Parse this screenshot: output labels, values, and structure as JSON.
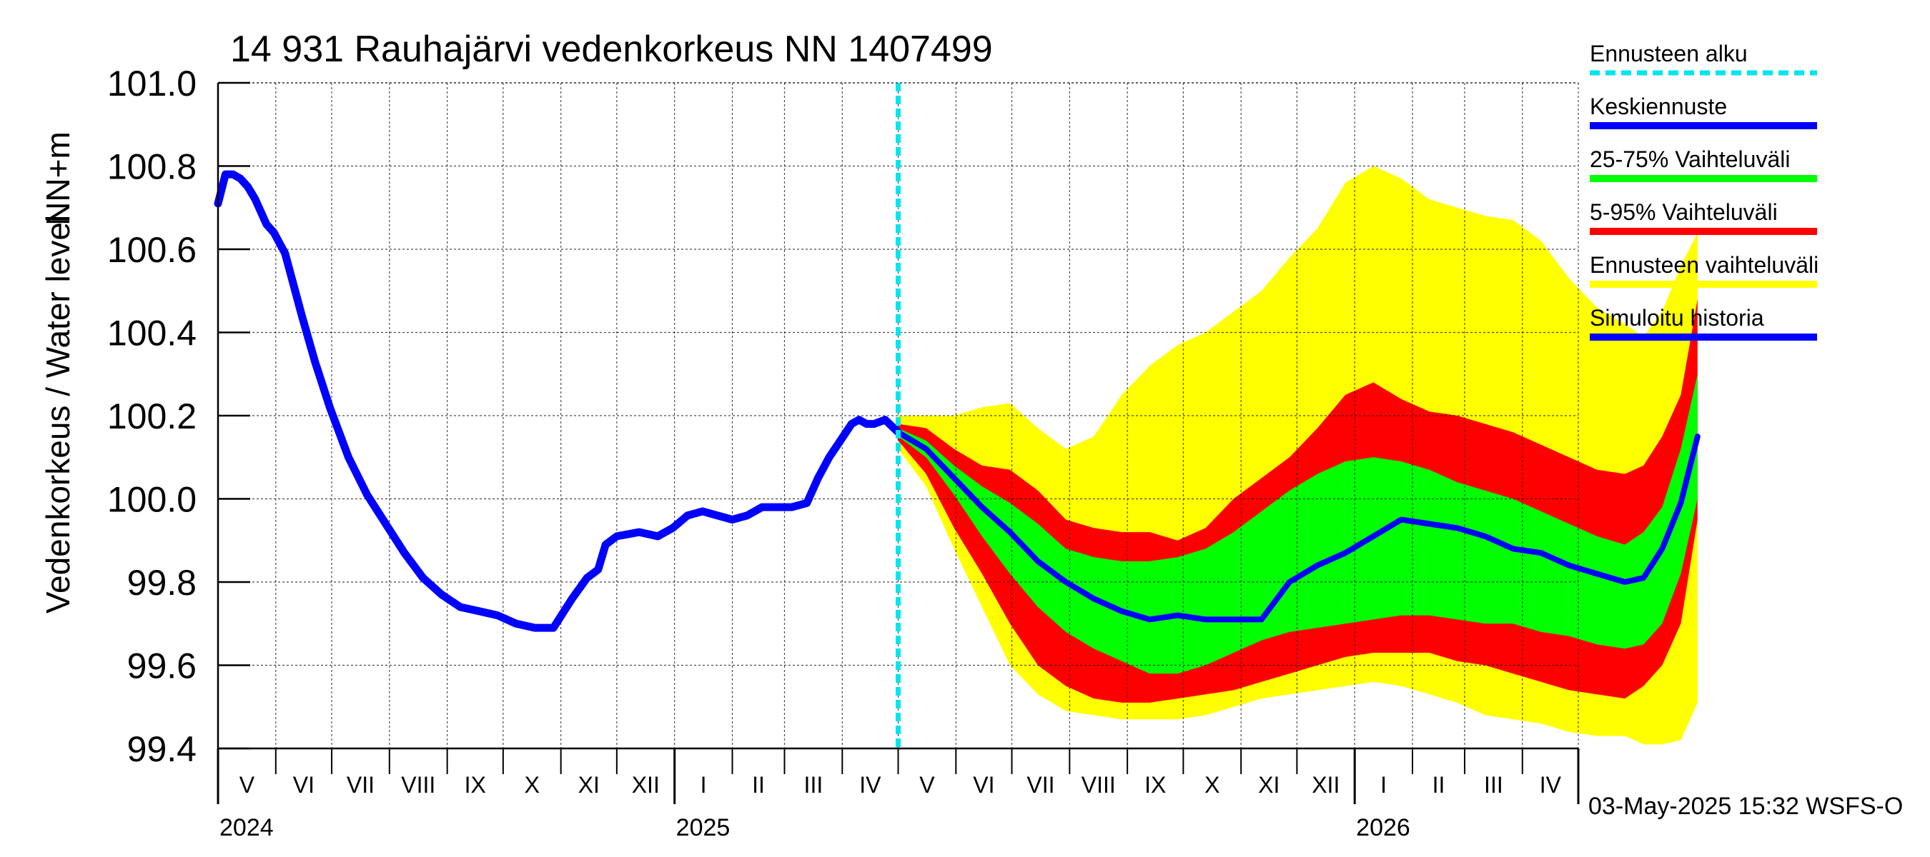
{
  "chart_data": {
    "type": "line",
    "title": "14 931 Rauhajärvi vedenkorkeus NN 1407499",
    "ylabel_main": "Vedenkorkeus / Water level",
    "ylabel_unit": "NN+m",
    "ylim": [
      99.4,
      101.0
    ],
    "y_ticks": [
      "99.4",
      "99.6",
      "99.8",
      "100.0",
      "100.2",
      "100.4",
      "100.6",
      "100.8",
      "101.0"
    ],
    "month_labels": [
      "V",
      "VI",
      "VII",
      "VIII",
      "IX",
      "X",
      "XI",
      "XII",
      "I",
      "II",
      "III",
      "IV",
      "V",
      "VI",
      "VII",
      "VIII",
      "IX",
      "X",
      "XI",
      "XII",
      "I",
      "II",
      "III",
      "IV"
    ],
    "year_labels": [
      "2024",
      "2025",
      "2026"
    ],
    "forecast_start_day": 365,
    "legend": [
      {
        "label": "Ennusteen alku",
        "color": "#00e5ee",
        "style": "dashed"
      },
      {
        "label": "Keskiennuste",
        "color": "#0000ff",
        "style": "solid"
      },
      {
        "label": "25-75% Vaihteluväli",
        "color": "#00ff00",
        "style": "solid"
      },
      {
        "label": "5-95% Vaihteluväli",
        "color": "#ff0000",
        "style": "solid"
      },
      {
        "label": "Ennusteen vaihteluväli",
        "color": "#ffff00",
        "style": "solid"
      },
      {
        "label": "Simuloitu historia",
        "color": "#0000ff",
        "style": "solid"
      }
    ],
    "footer": "03-May-2025 15:32 WSFS-O",
    "history": {
      "name": "Simuloitu historia",
      "x": [
        0,
        4,
        8,
        12,
        16,
        20,
        26,
        30,
        36,
        45,
        52,
        60,
        70,
        80,
        90,
        100,
        110,
        120,
        130,
        140,
        150,
        160,
        170,
        180,
        190,
        198,
        204,
        208,
        214,
        226,
        236,
        244,
        252,
        260,
        268,
        276,
        284,
        292,
        300,
        308,
        316,
        322,
        328,
        334,
        340,
        344,
        348,
        352,
        358,
        365
      ],
      "y": [
        100.71,
        100.78,
        100.78,
        100.77,
        100.75,
        100.72,
        100.66,
        100.64,
        100.59,
        100.44,
        100.33,
        100.22,
        100.1,
        100.01,
        99.94,
        99.87,
        99.81,
        99.77,
        99.74,
        99.73,
        99.72,
        99.7,
        99.69,
        99.69,
        99.76,
        99.81,
        99.83,
        99.89,
        99.91,
        99.92,
        99.91,
        99.93,
        99.96,
        99.97,
        99.96,
        99.95,
        99.96,
        99.98,
        99.98,
        99.98,
        99.99,
        100.05,
        100.1,
        100.14,
        100.18,
        100.19,
        100.18,
        100.18,
        100.19,
        100.16
      ]
    },
    "forecast": {
      "x": [
        365,
        380,
        395,
        410,
        425,
        440,
        455,
        470,
        485,
        500,
        515,
        530,
        545,
        560,
        575,
        590,
        605,
        620,
        635,
        650,
        665,
        680,
        695,
        710,
        725,
        740,
        755,
        765,
        775,
        785,
        794
      ],
      "median": [
        100.16,
        100.12,
        100.05,
        99.98,
        99.92,
        99.85,
        99.8,
        99.76,
        99.73,
        99.71,
        99.72,
        99.71,
        99.71,
        99.71,
        99.8,
        99.84,
        99.87,
        99.91,
        99.95,
        99.94,
        99.93,
        99.91,
        99.88,
        99.87,
        99.84,
        99.82,
        99.8,
        99.81,
        99.88,
        99.99,
        100.15
      ],
      "p25": [
        100.15,
        100.1,
        100.01,
        99.91,
        99.82,
        99.74,
        99.68,
        99.64,
        99.61,
        99.58,
        99.58,
        99.6,
        99.63,
        99.66,
        99.68,
        99.69,
        99.7,
        99.71,
        99.72,
        99.72,
        99.71,
        99.7,
        99.7,
        99.68,
        99.67,
        99.65,
        99.64,
        99.65,
        99.7,
        99.82,
        100.0
      ],
      "p75": [
        100.17,
        100.14,
        100.08,
        100.03,
        99.99,
        99.94,
        99.88,
        99.86,
        99.85,
        99.85,
        99.86,
        99.88,
        99.92,
        99.97,
        100.02,
        100.06,
        100.09,
        100.1,
        100.09,
        100.07,
        100.04,
        100.02,
        100.0,
        99.97,
        99.94,
        99.91,
        99.89,
        99.92,
        99.98,
        100.12,
        100.3
      ],
      "p5": [
        100.14,
        100.06,
        99.93,
        99.82,
        99.7,
        99.6,
        99.55,
        99.52,
        99.51,
        99.51,
        99.52,
        99.53,
        99.54,
        99.56,
        99.58,
        99.6,
        99.62,
        99.63,
        99.63,
        99.63,
        99.61,
        99.6,
        99.58,
        99.56,
        99.54,
        99.53,
        99.52,
        99.55,
        99.6,
        99.7,
        99.95
      ],
      "p95": [
        100.18,
        100.17,
        100.12,
        100.08,
        100.07,
        100.02,
        99.95,
        99.93,
        99.92,
        99.92,
        99.9,
        99.93,
        100.0,
        100.05,
        100.1,
        100.17,
        100.25,
        100.28,
        100.24,
        100.21,
        100.2,
        100.18,
        100.16,
        100.13,
        100.1,
        100.07,
        100.06,
        100.08,
        100.15,
        100.25,
        100.48
      ],
      "min": [
        100.12,
        100.03,
        99.88,
        99.74,
        99.6,
        99.53,
        99.49,
        99.48,
        99.47,
        99.47,
        99.47,
        99.48,
        99.5,
        99.52,
        99.53,
        99.54,
        99.55,
        99.56,
        99.55,
        99.53,
        99.51,
        99.48,
        99.47,
        99.46,
        99.44,
        99.43,
        99.43,
        99.41,
        99.41,
        99.42,
        99.51
      ],
      "max": [
        100.2,
        100.2,
        100.2,
        100.22,
        100.23,
        100.17,
        100.12,
        100.15,
        100.25,
        100.32,
        100.37,
        100.4,
        100.45,
        100.5,
        100.58,
        100.65,
        100.76,
        100.8,
        100.77,
        100.72,
        100.7,
        100.68,
        100.67,
        100.62,
        100.53,
        100.46,
        100.42,
        100.39,
        100.45,
        100.56,
        100.64
      ]
    }
  }
}
